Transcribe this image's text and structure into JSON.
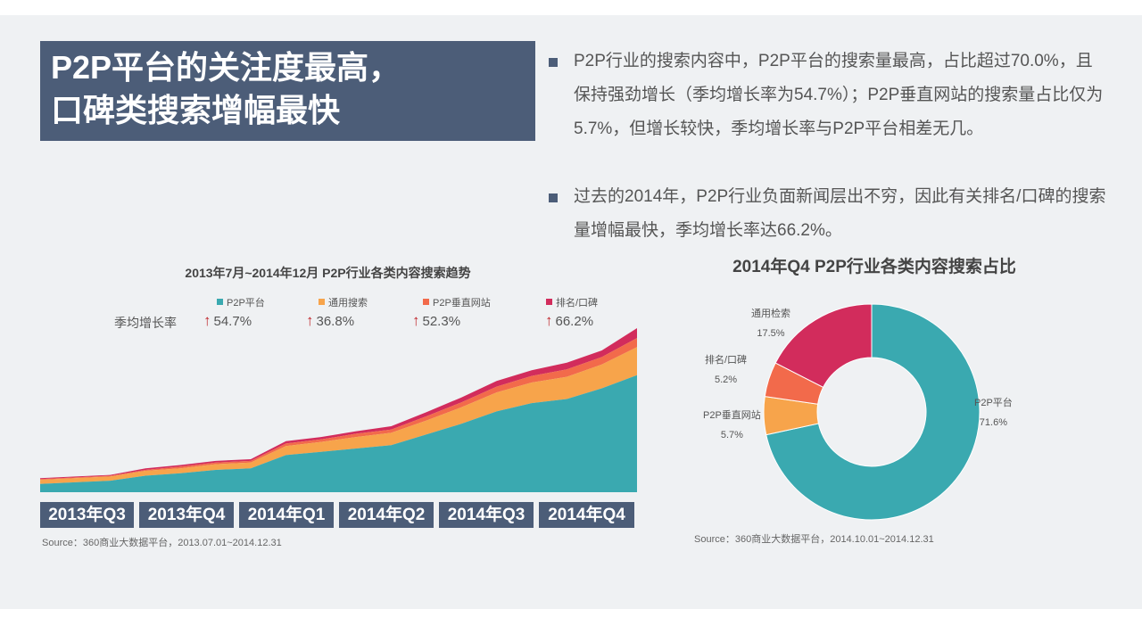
{
  "title": {
    "line1": "P2P平台的关注度最高，",
    "line2": "口碑类搜索增幅最快"
  },
  "bullets": [
    "P2P行业的搜索内容中，P2P平台的搜索量最高，占比超过70.0%，且保持强劲增长（季均增长率为54.7%）；P2P垂直网站的搜索量占比仅为5.7%，但增长较快，季均增长率与P2P平台相差无几。",
    "过去的2014年，P2P行业负面新闻层出不穷，因此有关排名/口碑的搜索量增幅最快，季均增长率达66.2%。"
  ],
  "growth_label": "季均增长率",
  "growth_arrow": "↑",
  "colors": {
    "p2p_platform": "#3aa9b0",
    "general_search": "#f7a44b",
    "vertical_site": "#f26a4b",
    "ranking": "#d22c5c",
    "title_bg": "#4c5d78"
  },
  "chart_data": [
    {
      "type": "area",
      "stacked": true,
      "title": "2013年7月~2014年12月 P2P行业各类内容搜索趋势",
      "quarters": [
        "2013年Q3",
        "2013年Q4",
        "2014年Q1",
        "2014年Q2",
        "2014年Q3",
        "2014年Q4"
      ],
      "x_points": 18,
      "series": [
        {
          "name": "P2P平台",
          "growth": "54.7%",
          "color": "#3aa9b0",
          "values": [
            10,
            12,
            14,
            20,
            23,
            27,
            29,
            45,
            49,
            53,
            57,
            70,
            83,
            98,
            108,
            113,
            126,
            142
          ]
        },
        {
          "name": "通用搜索",
          "growth": "36.8%",
          "color": "#f7a44b",
          "values": [
            5,
            5,
            5,
            6,
            6,
            7,
            7,
            11,
            12,
            14,
            15,
            17,
            20,
            23,
            25,
            27,
            29,
            34
          ]
        },
        {
          "name": "P2P垂直网站",
          "growth": "52.3%",
          "color": "#f26a4b",
          "values": [
            1,
            1,
            1,
            1,
            2,
            2,
            2,
            3,
            3,
            4,
            4,
            5,
            6,
            7,
            8,
            9,
            9,
            11
          ]
        },
        {
          "name": "排名/口碑",
          "growth": "66.2%",
          "color": "#d22c5c",
          "values": [
            1,
            1,
            1,
            2,
            2,
            2,
            2,
            3,
            3,
            3,
            4,
            5,
            6,
            7,
            7,
            8,
            8,
            12
          ]
        }
      ],
      "source": "Source：360商业大数据平台，2013.07.01~2014.12.31"
    },
    {
      "type": "pie",
      "donut": true,
      "title": "2014年Q4  P2P行业各类内容搜索占比",
      "slices": [
        {
          "name": "P2P平台",
          "value": 71.6,
          "label": "71.6%",
          "color": "#3aa9b0"
        },
        {
          "name": "P2P垂直网站",
          "value": 5.7,
          "label": "5.7%",
          "color": "#f7a44b"
        },
        {
          "name": "排名/口碑",
          "value": 5.2,
          "label": "5.2%",
          "color": "#f26a4b"
        },
        {
          "name": "通用检索",
          "value": 17.5,
          "label": "17.5%",
          "color": "#d22c5c"
        }
      ],
      "source": "Source：360商业大数据平台，2014.10.01~2014.12.31"
    }
  ]
}
